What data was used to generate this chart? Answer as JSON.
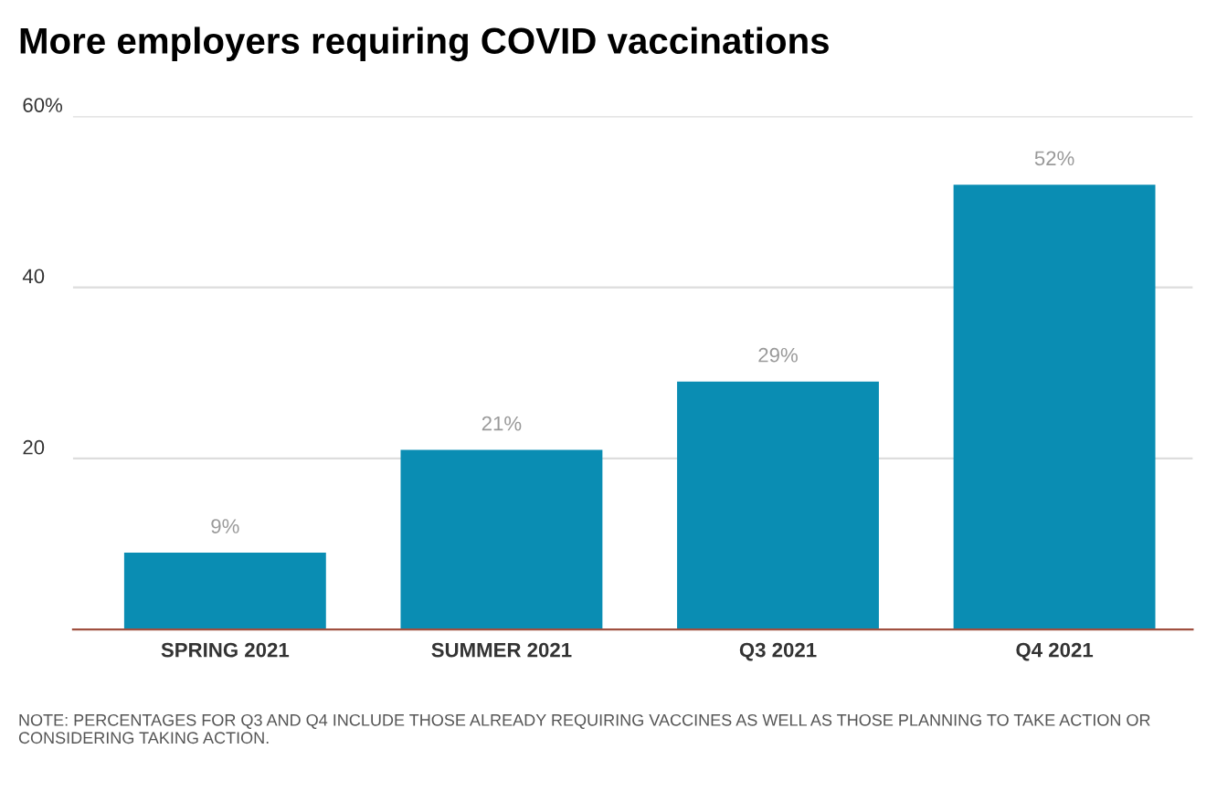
{
  "chart_data": {
    "type": "bar",
    "title": "More employers requiring COVID vaccinations",
    "categories": [
      "SPRING 2021",
      "SUMMER 2021",
      "Q3 2021",
      "Q4 2021"
    ],
    "values": [
      9,
      21,
      29,
      52
    ],
    "value_labels": [
      "9%",
      "21%",
      "29%",
      "52%"
    ],
    "color": "#0a8db3",
    "ylim": [
      0,
      60
    ],
    "yticks": [
      {
        "value": 20,
        "label": "20"
      },
      {
        "value": 40,
        "label": "40"
      },
      {
        "value": 60,
        "label": "60%"
      }
    ],
    "grid": "y",
    "annotations": [
      "NOTE: PERCENTAGES FOR Q3 AND Q4 INCLUDE THOSE ALREADY REQUIRING VACCINES AS WELL AS THOSE PLANNING TO TAKE ACTION OR CONSIDERING TAKING ACTION."
    ]
  }
}
